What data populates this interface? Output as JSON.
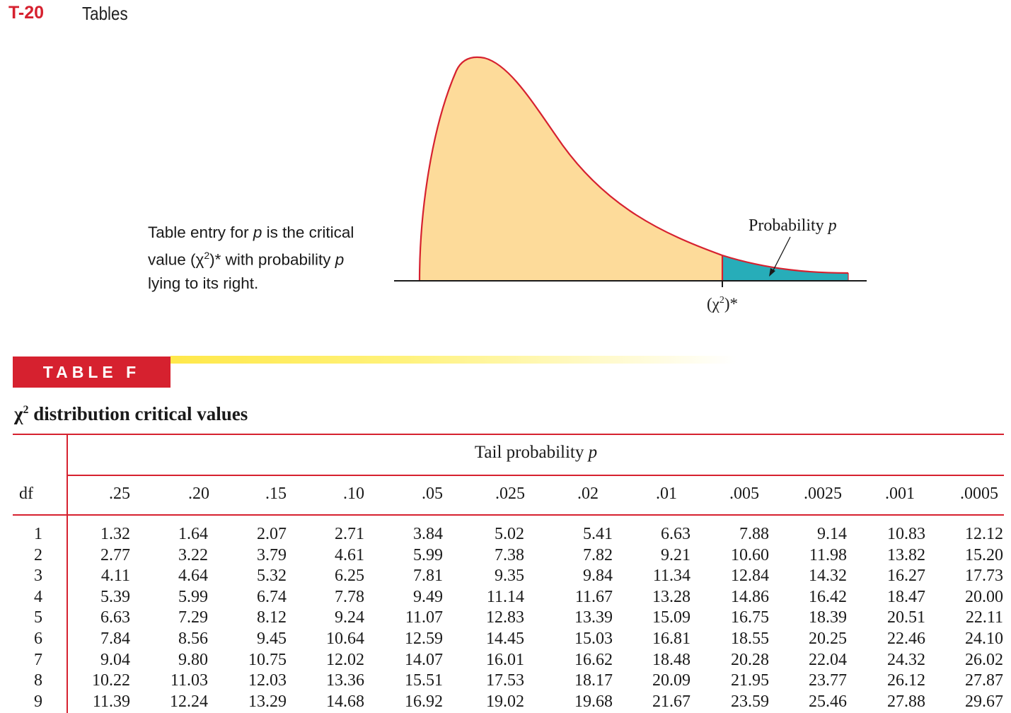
{
  "header": {
    "page_number": "T-20",
    "section": "Tables"
  },
  "caption": {
    "p1": "Table entry for ",
    "p_var": "p",
    "p2": " is the critical value (",
    "chi": "χ",
    "sup": "2",
    "p3": ")* with probability ",
    "p_var2": "p",
    "p4": " lying to its right."
  },
  "figure": {
    "prob_label": "Probability ",
    "prob_var": "p",
    "crit_chi": "(χ",
    "crit_sup": "2",
    "crit_end": ")*",
    "colors": {
      "curve": "#d6212f",
      "body_fill": "#fddb9a",
      "tail_fill": "#27adb9",
      "axis": "#1a1a1a"
    }
  },
  "table": {
    "banner": "TABLE F",
    "title_chi": "χ",
    "title_sup": "2",
    "title_rest": " distribution critical values",
    "span_label": "Tail probability ",
    "span_var": "p",
    "df_label": "df",
    "columns": [
      ".25",
      ".20",
      ".15",
      ".10",
      ".05",
      ".025",
      ".02",
      ".01",
      ".005",
      ".0025",
      ".001",
      ".0005"
    ],
    "rows": [
      {
        "df": "1",
        "values": [
          "1.32",
          "1.64",
          "2.07",
          "2.71",
          "3.84",
          "5.02",
          "5.41",
          "6.63",
          "7.88",
          "9.14",
          "10.83",
          "12.12"
        ]
      },
      {
        "df": "2",
        "values": [
          "2.77",
          "3.22",
          "3.79",
          "4.61",
          "5.99",
          "7.38",
          "7.82",
          "9.21",
          "10.60",
          "11.98",
          "13.82",
          "15.20"
        ]
      },
      {
        "df": "3",
        "values": [
          "4.11",
          "4.64",
          "5.32",
          "6.25",
          "7.81",
          "9.35",
          "9.84",
          "11.34",
          "12.84",
          "14.32",
          "16.27",
          "17.73"
        ]
      },
      {
        "df": "4",
        "values": [
          "5.39",
          "5.99",
          "6.74",
          "7.78",
          "9.49",
          "11.14",
          "11.67",
          "13.28",
          "14.86",
          "16.42",
          "18.47",
          "20.00"
        ]
      },
      {
        "df": "5",
        "values": [
          "6.63",
          "7.29",
          "8.12",
          "9.24",
          "11.07",
          "12.83",
          "13.39",
          "15.09",
          "16.75",
          "18.39",
          "20.51",
          "22.11"
        ]
      },
      {
        "df": "6",
        "values": [
          "7.84",
          "8.56",
          "9.45",
          "10.64",
          "12.59",
          "14.45",
          "15.03",
          "16.81",
          "18.55",
          "20.25",
          "22.46",
          "24.10"
        ]
      },
      {
        "df": "7",
        "values": [
          "9.04",
          "9.80",
          "10.75",
          "12.02",
          "14.07",
          "16.01",
          "16.62",
          "18.48",
          "20.28",
          "22.04",
          "24.32",
          "26.02"
        ]
      },
      {
        "df": "8",
        "values": [
          "10.22",
          "11.03",
          "12.03",
          "13.36",
          "15.51",
          "17.53",
          "18.17",
          "20.09",
          "21.95",
          "23.77",
          "26.12",
          "27.87"
        ]
      },
      {
        "df": "9",
        "values": [
          "11.39",
          "12.24",
          "13.29",
          "14.68",
          "16.92",
          "19.02",
          "19.68",
          "21.67",
          "23.59",
          "25.46",
          "27.88",
          "29.67"
        ]
      }
    ]
  }
}
